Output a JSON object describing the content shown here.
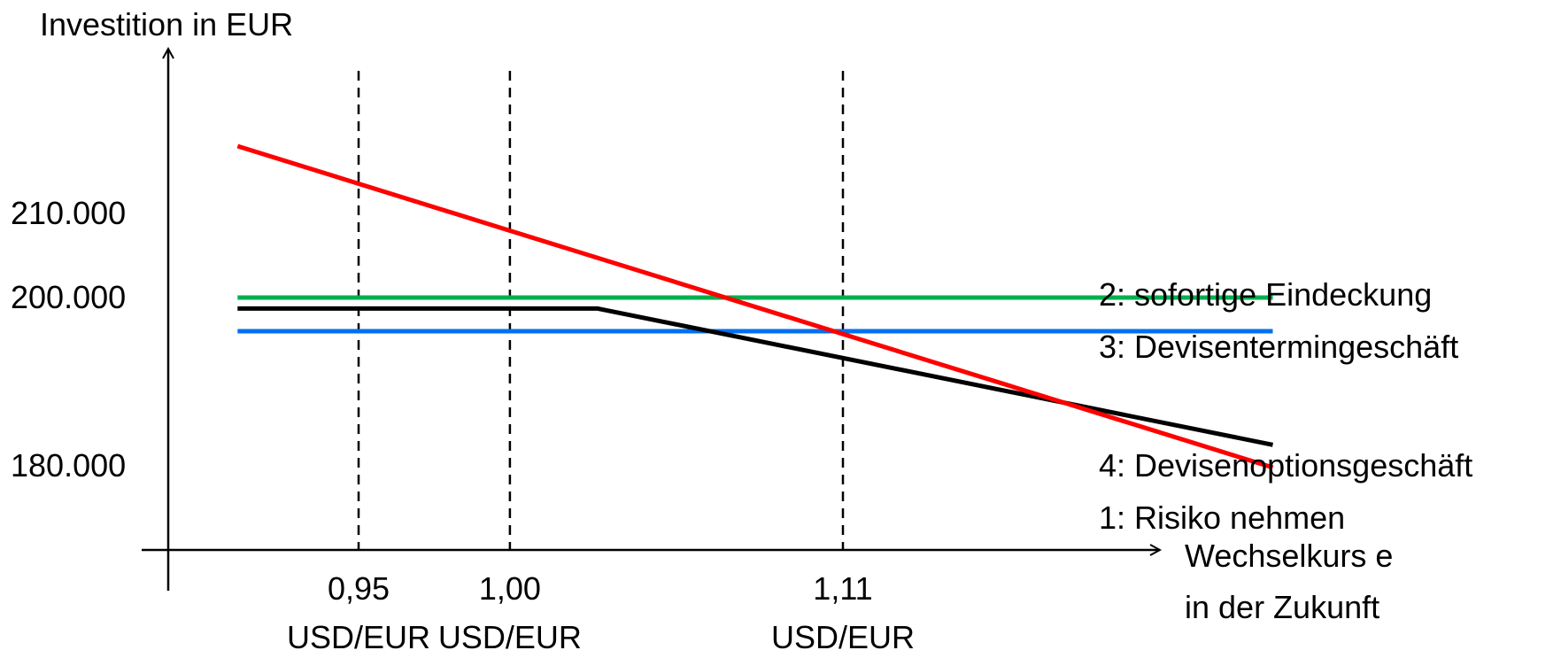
{
  "chart_data": {
    "type": "line",
    "ylabel": "Investition in EUR",
    "xlabel_lines": [
      "Wechselkurs e",
      "in der Zukunft"
    ],
    "y_ticks": [
      {
        "value": 210000,
        "label": "210.000"
      },
      {
        "value": 200000,
        "label": "200.000"
      },
      {
        "value": 180000,
        "label": "180.000"
      }
    ],
    "x_ticks": [
      {
        "value": 0.95,
        "label": "0,95",
        "unit": "USD/EUR"
      },
      {
        "value": 1.0,
        "label": "1,00",
        "unit": "USD/EUR"
      },
      {
        "value": 1.11,
        "label": "1,11",
        "unit": "USD/EUR"
      }
    ],
    "series": [
      {
        "name": "2: sofortige Eindeckung",
        "color": "#00b050",
        "points": [
          [
            0.91,
            200000
          ],
          [
            1.252,
            200000
          ]
        ]
      },
      {
        "name": "3: Devisentermingeschäft",
        "color": "#0070f0",
        "points": [
          [
            0.91,
            196000
          ],
          [
            1.252,
            196000
          ]
        ]
      },
      {
        "name": "4: Devisenoptionsgeschäft",
        "color": "#000000",
        "points": [
          [
            0.91,
            198700
          ],
          [
            1.029,
            198700
          ],
          [
            1.252,
            182500
          ]
        ]
      },
      {
        "name": "1: Risiko nehmen",
        "color": "#ff0000",
        "points": [
          [
            0.91,
            218000
          ],
          [
            1.252,
            179800
          ]
        ]
      }
    ]
  }
}
